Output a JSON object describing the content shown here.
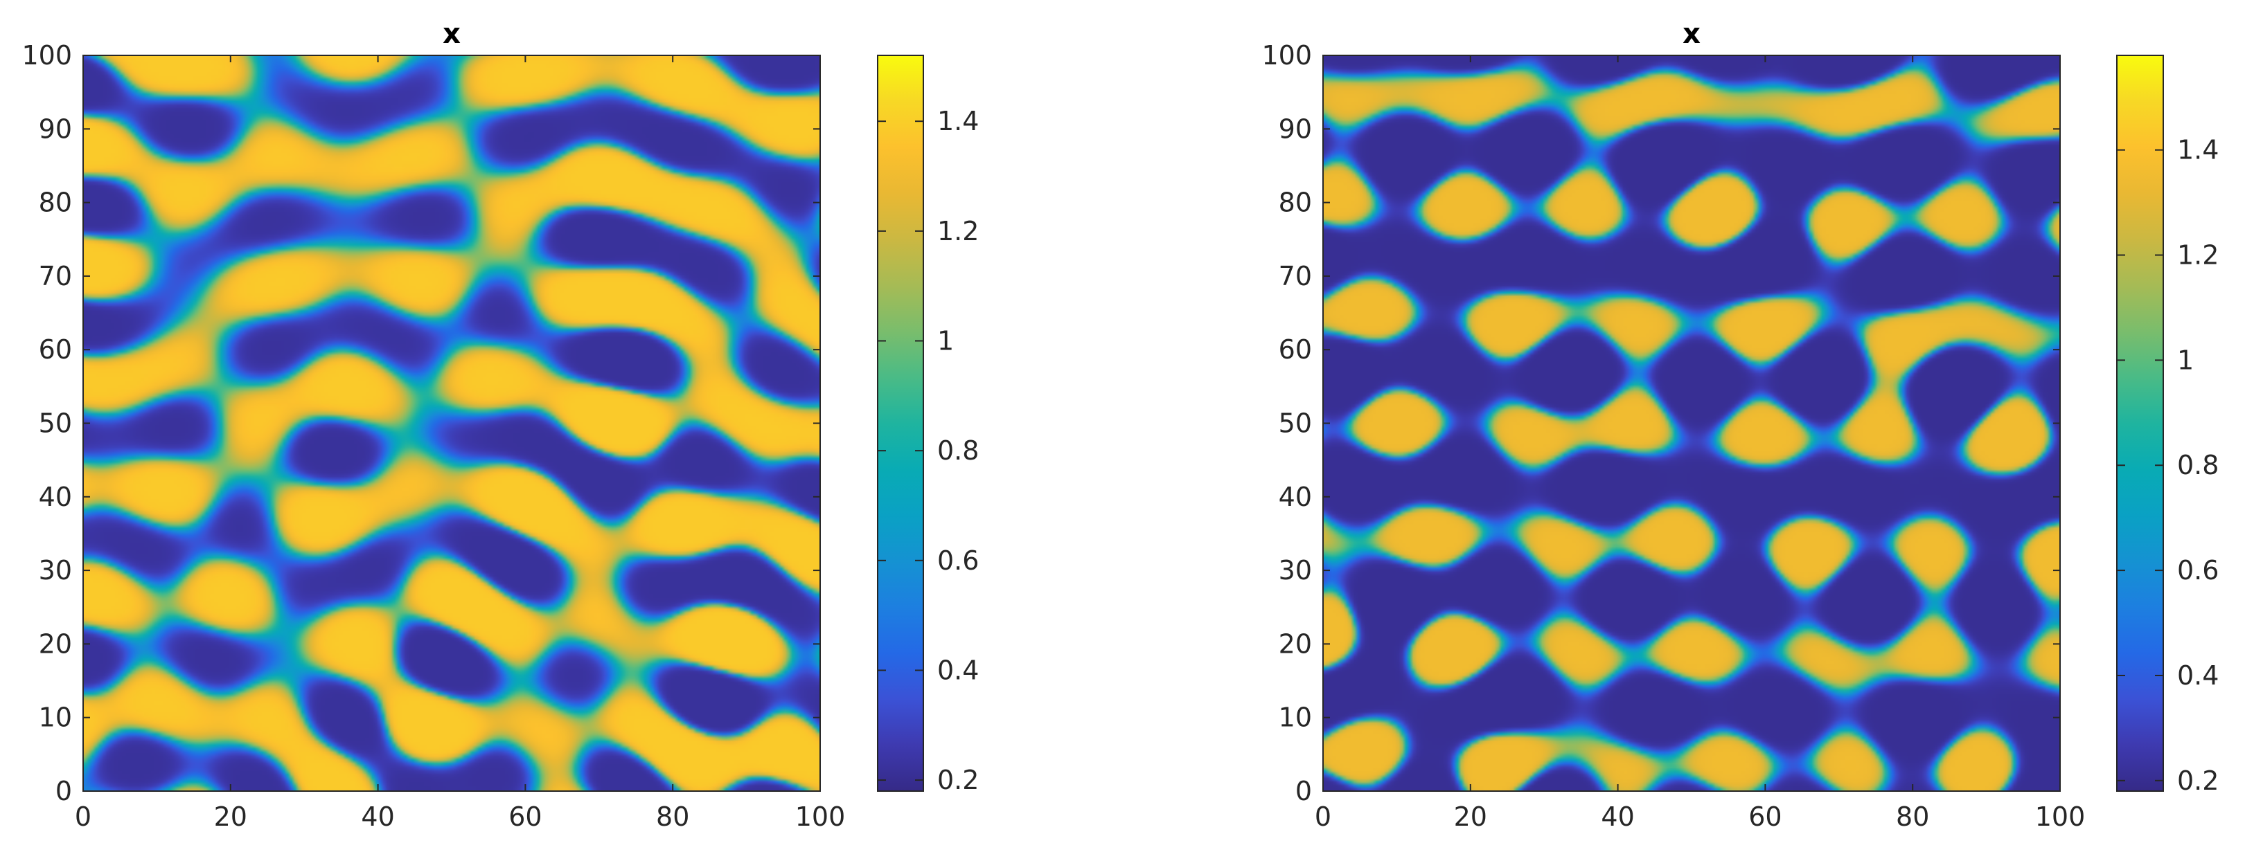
{
  "figure": {
    "panel_count": 2
  },
  "chart_data": [
    {
      "type": "heatmap",
      "title": "x",
      "xlabel": "",
      "ylabel": "",
      "xlim": [
        0,
        100
      ],
      "ylim": [
        0,
        100
      ],
      "xticks": [
        0,
        20,
        40,
        60,
        80,
        100
      ],
      "yticks": [
        0,
        10,
        20,
        30,
        40,
        50,
        60,
        70,
        80,
        90,
        100
      ],
      "xtick_labels": [
        "0",
        "20",
        "40",
        "60",
        "80",
        "100"
      ],
      "ytick_labels": [
        "0",
        "10",
        "20",
        "30",
        "40",
        "50",
        "60",
        "70",
        "80",
        "90",
        "100"
      ],
      "colormap": "parula",
      "pattern": "spots and short stripes (labyrinthine Turing pattern)",
      "value_range": [
        0.18,
        1.52
      ],
      "colorbar": {
        "limits": [
          0.18,
          1.52
        ],
        "ticks": [
          0.2,
          0.4,
          0.6,
          0.8,
          1.0,
          1.2,
          1.4
        ],
        "tick_labels": [
          "0.2",
          "0.4",
          "0.6",
          "0.8",
          "1",
          "1.2",
          "1.4"
        ]
      },
      "grid": false
    },
    {
      "type": "heatmap",
      "title": "x",
      "xlabel": "",
      "ylabel": "",
      "xlim": [
        0,
        100
      ],
      "ylim": [
        0,
        100
      ],
      "xticks": [
        0,
        20,
        40,
        60,
        80,
        100
      ],
      "yticks": [
        0,
        10,
        20,
        30,
        40,
        50,
        60,
        70,
        80,
        90,
        100
      ],
      "xtick_labels": [
        "0",
        "20",
        "40",
        "60",
        "80",
        "100"
      ],
      "ytick_labels": [
        "0",
        "10",
        "20",
        "30",
        "40",
        "50",
        "60",
        "70",
        "80",
        "90",
        "100"
      ],
      "colormap": "parula",
      "pattern": "long labyrinthine stripes on a high-value background",
      "value_range": [
        0.18,
        1.58
      ],
      "colorbar": {
        "limits": [
          0.18,
          1.58
        ],
        "ticks": [
          0.2,
          0.4,
          0.6,
          0.8,
          1.0,
          1.2,
          1.4
        ],
        "tick_labels": [
          "0.2",
          "0.4",
          "0.6",
          "0.8",
          "1",
          "1.2",
          "1.4"
        ]
      },
      "grid": false
    }
  ],
  "colors": {
    "axis": "#262626",
    "parula": [
      "#352a87",
      "#3e3ab0",
      "#3b52d6",
      "#2469e6",
      "#1d7fe0",
      "#1592d2",
      "#0aa1c4",
      "#09abb4",
      "#1fb49f",
      "#4abb86",
      "#7abd6c",
      "#a6bb55",
      "#cbb842",
      "#e9b833",
      "#fcc12d",
      "#f7d825",
      "#f9fb0e"
    ]
  }
}
